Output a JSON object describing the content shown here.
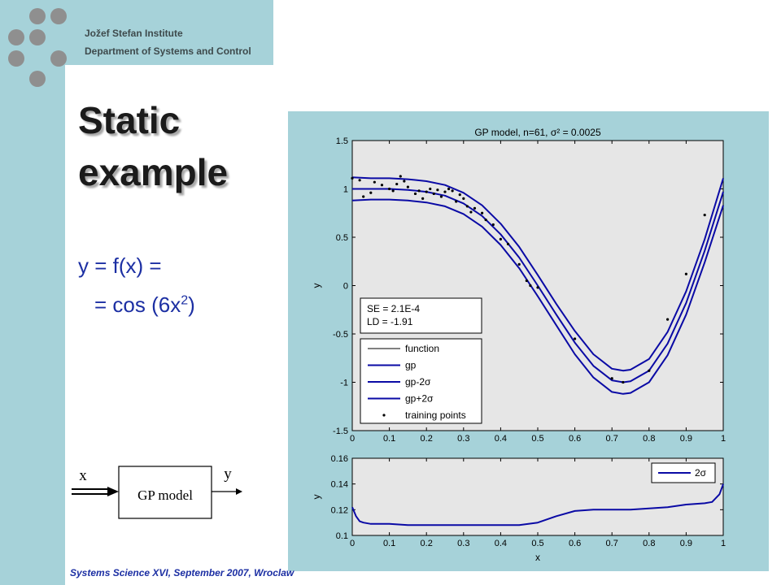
{
  "header": {
    "institute": "Jožef Stefan Institute",
    "department": "Department  of Systems and Control"
  },
  "slide": {
    "title_line1": "Static",
    "title_line2": "example",
    "equation_line1": "y = f(x) =",
    "equation_line2_prefix": "= cos (6x",
    "equation_line2_sup": "2",
    "equation_line2_suffix": ")"
  },
  "diagram": {
    "input_label": "x",
    "output_label": "y",
    "box_label": "GP model"
  },
  "footer": {
    "text": "Systems Science XVI, September 2007, Wroclaw"
  },
  "chart_data": [
    {
      "type": "line",
      "title": "GP model, n=61, σ² = 0.0025",
      "xlabel": "",
      "ylabel": "y",
      "xlim": [
        0,
        1
      ],
      "ylim": [
        -1.5,
        1.5
      ],
      "xticks": [
        0,
        0.1,
        0.2,
        0.3,
        0.4,
        0.5,
        0.6,
        0.7,
        0.8,
        0.9,
        1
      ],
      "xtick_labels": [
        "0",
        "0.1",
        "0.2",
        "0.3",
        "0.4",
        "0.5",
        "0.6",
        "0.7",
        "0.8",
        "0.9",
        "1"
      ],
      "yticks": [
        -1.5,
        -1,
        -0.5,
        0,
        0.5,
        1,
        1.5
      ],
      "ytick_labels": [
        "-1.5",
        "-1",
        "-0.5",
        "0",
        "0.5",
        "1",
        "1.5"
      ],
      "annotation": [
        "SE = 2.1E-4",
        "LD = -1.91"
      ],
      "legend_position": "bottom-left",
      "series": [
        {
          "name": "function",
          "color": "#000000",
          "style": "solid-thin",
          "x": [
            0,
            0.05,
            0.1,
            0.15,
            0.2,
            0.25,
            0.3,
            0.35,
            0.4,
            0.45,
            0.5,
            0.55,
            0.6,
            0.65,
            0.7,
            0.73,
            0.75,
            0.8,
            0.85,
            0.9,
            0.95,
            1.0
          ],
          "y": [
            1.0,
            1.0,
            1.0,
            0.99,
            0.97,
            0.93,
            0.85,
            0.72,
            0.53,
            0.29,
            0.0,
            -0.3,
            -0.59,
            -0.83,
            -0.98,
            -1.0,
            -0.99,
            -0.88,
            -0.6,
            -0.18,
            0.36,
            0.96
          ]
        },
        {
          "name": "gp",
          "color": "#0a0aa5",
          "style": "solid",
          "x": [
            0,
            0.05,
            0.1,
            0.15,
            0.2,
            0.25,
            0.3,
            0.35,
            0.4,
            0.45,
            0.5,
            0.55,
            0.6,
            0.65,
            0.7,
            0.73,
            0.75,
            0.8,
            0.85,
            0.9,
            0.95,
            1.0
          ],
          "y": [
            1.0,
            1.0,
            1.0,
            0.99,
            0.97,
            0.93,
            0.85,
            0.72,
            0.53,
            0.29,
            0.0,
            -0.3,
            -0.59,
            -0.83,
            -0.98,
            -1.0,
            -0.99,
            -0.88,
            -0.6,
            -0.18,
            0.36,
            0.97
          ]
        },
        {
          "name": "gp-2σ",
          "color": "#0a0aa5",
          "style": "solid",
          "x": [
            0,
            0.05,
            0.1,
            0.15,
            0.2,
            0.25,
            0.3,
            0.35,
            0.4,
            0.45,
            0.5,
            0.55,
            0.6,
            0.65,
            0.7,
            0.73,
            0.75,
            0.8,
            0.85,
            0.9,
            0.95,
            1.0
          ],
          "y": [
            0.88,
            0.89,
            0.89,
            0.88,
            0.86,
            0.82,
            0.74,
            0.61,
            0.42,
            0.18,
            -0.11,
            -0.41,
            -0.71,
            -0.95,
            -1.1,
            -1.12,
            -1.11,
            -1.0,
            -0.72,
            -0.3,
            0.24,
            0.83
          ]
        },
        {
          "name": "gp+2σ",
          "color": "#0a0aa5",
          "style": "solid",
          "x": [
            0,
            0.05,
            0.1,
            0.15,
            0.2,
            0.25,
            0.3,
            0.35,
            0.4,
            0.45,
            0.5,
            0.55,
            0.6,
            0.65,
            0.7,
            0.73,
            0.75,
            0.8,
            0.85,
            0.9,
            0.95,
            1.0
          ],
          "y": [
            1.12,
            1.11,
            1.11,
            1.1,
            1.08,
            1.04,
            0.96,
            0.83,
            0.64,
            0.4,
            0.11,
            -0.19,
            -0.47,
            -0.71,
            -0.86,
            -0.88,
            -0.87,
            -0.76,
            -0.48,
            -0.06,
            0.48,
            1.11
          ]
        },
        {
          "name": "training points",
          "color": "#000000",
          "style": "markers",
          "x": [
            0.0,
            0.02,
            0.03,
            0.05,
            0.06,
            0.08,
            0.1,
            0.11,
            0.12,
            0.13,
            0.14,
            0.15,
            0.17,
            0.18,
            0.19,
            0.2,
            0.21,
            0.22,
            0.23,
            0.24,
            0.25,
            0.26,
            0.27,
            0.28,
            0.29,
            0.3,
            0.31,
            0.32,
            0.33,
            0.35,
            0.36,
            0.38,
            0.4,
            0.42,
            0.45,
            0.47,
            0.48,
            0.5,
            0.6,
            0.7,
            0.73,
            0.8,
            0.85,
            0.9,
            0.95
          ],
          "y": [
            1.11,
            1.09,
            0.92,
            0.96,
            1.07,
            1.04,
            1.0,
            0.98,
            1.05,
            1.13,
            1.08,
            1.02,
            0.95,
            0.98,
            0.9,
            0.97,
            1.0,
            0.95,
            0.99,
            0.92,
            0.97,
            1.0,
            0.98,
            0.87,
            0.94,
            0.9,
            0.82,
            0.76,
            0.8,
            0.75,
            0.68,
            0.63,
            0.48,
            0.43,
            0.22,
            0.05,
            0.0,
            -0.02,
            -0.55,
            -0.96,
            -1.0,
            -0.88,
            -0.35,
            0.12,
            0.73
          ]
        }
      ]
    },
    {
      "type": "line",
      "title": "",
      "xlabel": "x",
      "ylabel": "y",
      "xlim": [
        0,
        1
      ],
      "ylim": [
        0.1,
        0.16
      ],
      "xticks": [
        0,
        0.1,
        0.2,
        0.3,
        0.4,
        0.5,
        0.6,
        0.7,
        0.8,
        0.9,
        1
      ],
      "xtick_labels": [
        "0",
        "0.1",
        "0.2",
        "0.3",
        "0.4",
        "0.5",
        "0.6",
        "0.7",
        "0.8",
        "0.9",
        "1"
      ],
      "yticks": [
        0.1,
        0.12,
        0.14,
        0.16
      ],
      "ytick_labels": [
        "0.1",
        "0.12",
        "0.14",
        "0.16"
      ],
      "legend_position": "top-right",
      "series": [
        {
          "name": "2σ",
          "color": "#0a0aa5",
          "x": [
            0,
            0.01,
            0.02,
            0.03,
            0.05,
            0.1,
            0.15,
            0.2,
            0.3,
            0.4,
            0.45,
            0.5,
            0.55,
            0.6,
            0.65,
            0.7,
            0.75,
            0.8,
            0.85,
            0.9,
            0.95,
            0.97,
            0.99,
            1.0
          ],
          "y": [
            0.122,
            0.115,
            0.111,
            0.11,
            0.109,
            0.109,
            0.108,
            0.108,
            0.108,
            0.108,
            0.108,
            0.11,
            0.115,
            0.119,
            0.12,
            0.12,
            0.12,
            0.121,
            0.122,
            0.124,
            0.125,
            0.126,
            0.132,
            0.14
          ]
        }
      ]
    }
  ]
}
